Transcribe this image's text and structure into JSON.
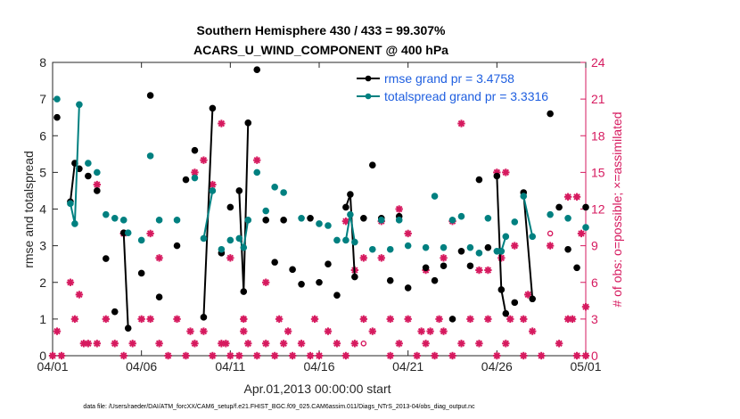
{
  "chart_data": {
    "type": "line",
    "title_line1": "Southern Hemisphere 430 / 433 = 99.307%",
    "title_line2": "ACARS_U_WIND_COMPONENT @ 400 hPa",
    "xlabel": "Apr.01,2013 00:00:00 start",
    "ylabel_left": "rmse and totalspread",
    "ylabel_right": "# of obs: o=possible; ×=assimilated",
    "xlim": [
      0,
      30
    ],
    "ylim_left": [
      0,
      8
    ],
    "ylim_right": [
      0,
      24
    ],
    "x_ticks": [
      0,
      5,
      10,
      15,
      20,
      25,
      30
    ],
    "x_tick_labels": [
      "04/01",
      "04/06",
      "04/11",
      "04/16",
      "04/21",
      "04/26",
      "05/01"
    ],
    "y_ticks_left": [
      "0",
      "1",
      "2",
      "3",
      "4",
      "5",
      "6",
      "7",
      "8"
    ],
    "y_ticks_right": [
      "0",
      "3",
      "6",
      "9",
      "12",
      "15",
      "18",
      "21",
      "24"
    ],
    "legend": [
      "rmse grand pr = 3.4758",
      "totalspread grand pr = 3.3316"
    ],
    "footnote": "data file: /Users/raeder/DAI/ATM_forcXX/CAM6_setup/f.e21.FHIST_BGC.f09_025.CAM6assim.011/Diags_NTrS_2013-04/obs_diag_output.nc",
    "colors": {
      "rmse": "#000000",
      "spread": "#008080",
      "obs": "#d61a5f"
    },
    "series": [
      {
        "name": "rmse",
        "points": [
          [
            0.25,
            6.5
          ],
          [
            1.0,
            4.2
          ],
          [
            1.25,
            5.25
          ],
          [
            1.5,
            5.1
          ],
          [
            2.0,
            4.9
          ],
          [
            2.5,
            4.5
          ],
          [
            3.0,
            2.65
          ],
          [
            3.5,
            1.2
          ],
          [
            4.0,
            3.35
          ],
          [
            4.25,
            0.75
          ],
          [
            5.0,
            2.25
          ],
          [
            5.5,
            7.1
          ],
          [
            6.0,
            1.6
          ],
          [
            7.0,
            3.0
          ],
          [
            7.5,
            4.8
          ],
          [
            8.0,
            5.6
          ],
          [
            8.5,
            1.05
          ],
          [
            9.0,
            6.75
          ],
          [
            9.5,
            2.8
          ],
          [
            10.0,
            4.05
          ],
          [
            10.5,
            4.5
          ],
          [
            10.75,
            1.75
          ],
          [
            11.0,
            6.35
          ],
          [
            11.5,
            7.8
          ],
          [
            12.0,
            3.7
          ],
          [
            12.5,
            2.55
          ],
          [
            13.0,
            3.7
          ],
          [
            13.5,
            2.35
          ],
          [
            14.0,
            1.95
          ],
          [
            14.5,
            3.75
          ],
          [
            15.0,
            2.0
          ],
          [
            15.5,
            2.5
          ],
          [
            16.0,
            1.65
          ],
          [
            16.5,
            4.05
          ],
          [
            16.75,
            4.4
          ],
          [
            17.0,
            2.15
          ],
          [
            17.5,
            3.75
          ],
          [
            18.0,
            5.2
          ],
          [
            18.5,
            3.75
          ],
          [
            19.0,
            2.05
          ],
          [
            19.5,
            3.8
          ],
          [
            20.0,
            1.85
          ],
          [
            21.0,
            2.4
          ],
          [
            21.5,
            2.05
          ],
          [
            22.0,
            2.45
          ],
          [
            22.5,
            1.0
          ],
          [
            23.0,
            2.85
          ],
          [
            23.5,
            2.45
          ],
          [
            24.0,
            4.8
          ],
          [
            24.5,
            2.95
          ],
          [
            25.0,
            4.9
          ],
          [
            25.25,
            1.8
          ],
          [
            25.5,
            1.15
          ],
          [
            26.0,
            1.45
          ],
          [
            26.5,
            4.45
          ],
          [
            27.0,
            1.55
          ],
          [
            28.0,
            6.6
          ],
          [
            28.5,
            4.05
          ],
          [
            29.0,
            2.9
          ],
          [
            29.5,
            2.4
          ],
          [
            30.0,
            4.05
          ]
        ]
      },
      {
        "name": "totalspread",
        "points": [
          [
            0.25,
            7.0
          ],
          [
            1.0,
            4.15
          ],
          [
            1.25,
            3.6
          ],
          [
            1.5,
            6.85
          ],
          [
            2.0,
            5.25
          ],
          [
            2.5,
            5.0
          ],
          [
            3.0,
            3.85
          ],
          [
            3.5,
            3.75
          ],
          [
            4.0,
            3.7
          ],
          [
            4.25,
            3.35
          ],
          [
            5.0,
            3.15
          ],
          [
            5.5,
            5.45
          ],
          [
            6.0,
            3.7
          ],
          [
            7.0,
            3.7
          ],
          [
            8.0,
            4.85
          ],
          [
            8.5,
            3.2
          ],
          [
            9.0,
            4.5
          ],
          [
            9.5,
            2.9
          ],
          [
            10.0,
            3.15
          ],
          [
            10.5,
            3.2
          ],
          [
            10.75,
            2.95
          ],
          [
            11.0,
            3.7
          ],
          [
            11.5,
            5.0
          ],
          [
            12.0,
            3.95
          ],
          [
            12.5,
            4.6
          ],
          [
            13.0,
            4.45
          ],
          [
            14.0,
            3.75
          ],
          [
            15.0,
            3.6
          ],
          [
            15.5,
            3.55
          ],
          [
            16.0,
            3.15
          ],
          [
            16.5,
            3.15
          ],
          [
            16.75,
            3.85
          ],
          [
            17.0,
            3.1
          ],
          [
            18.0,
            2.9
          ],
          [
            18.5,
            3.7
          ],
          [
            19.0,
            2.9
          ],
          [
            19.5,
            3.7
          ],
          [
            20.0,
            3.0
          ],
          [
            21.0,
            2.95
          ],
          [
            21.5,
            4.35
          ],
          [
            22.0,
            2.95
          ],
          [
            22.5,
            3.7
          ],
          [
            23.0,
            3.8
          ],
          [
            23.5,
            2.95
          ],
          [
            24.0,
            2.8
          ],
          [
            24.5,
            3.75
          ],
          [
            25.0,
            2.85
          ],
          [
            25.25,
            2.85
          ],
          [
            25.5,
            3.25
          ],
          [
            26.0,
            3.65
          ],
          [
            26.5,
            4.35
          ],
          [
            27.0,
            3.25
          ],
          [
            28.0,
            3.85
          ],
          [
            29.0,
            3.75
          ],
          [
            30.0,
            3.5
          ]
        ]
      }
    ],
    "line_segments": {
      "rmse": [
        [
          1.0,
          1.25
        ],
        [
          4.0,
          4.25
        ],
        [
          8.5,
          9.0
        ],
        [
          10.5,
          10.75,
          11.0
        ],
        [
          16.5,
          16.75,
          17.0
        ],
        [
          25.0,
          25.25,
          25.5
        ],
        [
          26.5,
          27.0
        ]
      ],
      "totalspread": [
        [
          1.0,
          1.25,
          1.5
        ],
        [
          8.5,
          9.0
        ],
        [
          10.5,
          10.75,
          11.0
        ],
        [
          16.5,
          16.75,
          17.0
        ],
        [
          25.0,
          25.25,
          25.5
        ],
        [
          26.5,
          27.0
        ]
      ]
    },
    "obs_assimilated": [
      [
        0.0,
        0
      ],
      [
        0.25,
        2
      ],
      [
        0.5,
        0
      ],
      [
        1.0,
        6
      ],
      [
        1.25,
        3
      ],
      [
        1.5,
        5
      ],
      [
        1.75,
        1
      ],
      [
        2.0,
        1
      ],
      [
        2.5,
        14
      ],
      [
        2.5,
        1
      ],
      [
        3.0,
        3
      ],
      [
        3.5,
        1
      ],
      [
        4.0,
        10
      ],
      [
        4.0,
        0
      ],
      [
        4.5,
        1
      ],
      [
        5.0,
        3
      ],
      [
        5.5,
        10
      ],
      [
        5.5,
        3
      ],
      [
        6.0,
        8
      ],
      [
        6.0,
        1
      ],
      [
        6.5,
        0
      ],
      [
        7.0,
        3
      ],
      [
        7.5,
        0
      ],
      [
        7.75,
        2
      ],
      [
        8.0,
        15
      ],
      [
        8.0,
        1
      ],
      [
        8.5,
        2
      ],
      [
        8.5,
        16
      ],
      [
        9.0,
        14
      ],
      [
        9.0,
        0
      ],
      [
        9.5,
        19
      ],
      [
        9.5,
        1
      ],
      [
        9.75,
        1
      ],
      [
        10.0,
        0
      ],
      [
        10.0,
        8
      ],
      [
        10.5,
        0
      ],
      [
        10.75,
        2
      ],
      [
        10.75,
        3
      ],
      [
        11.0,
        1
      ],
      [
        11.5,
        16
      ],
      [
        11.5,
        0
      ],
      [
        12.0,
        6
      ],
      [
        12.0,
        1
      ],
      [
        12.5,
        0
      ],
      [
        12.75,
        3
      ],
      [
        13.0,
        1
      ],
      [
        13.25,
        2
      ],
      [
        13.5,
        0
      ],
      [
        14.0,
        1
      ],
      [
        14.5,
        0
      ],
      [
        14.75,
        3
      ],
      [
        15.0,
        0
      ],
      [
        15.5,
        2
      ],
      [
        16.0,
        1
      ],
      [
        16.5,
        0
      ],
      [
        16.5,
        11
      ],
      [
        17.0,
        7
      ],
      [
        17.0,
        1
      ],
      [
        17.5,
        3
      ],
      [
        17.5,
        8
      ],
      [
        18.0,
        2
      ],
      [
        18.5,
        11
      ],
      [
        18.5,
        8
      ],
      [
        19.0,
        0
      ],
      [
        19.0,
        3
      ],
      [
        19.5,
        12
      ],
      [
        19.5,
        1
      ],
      [
        20.0,
        10
      ],
      [
        20.0,
        3
      ],
      [
        20.5,
        0
      ],
      [
        20.75,
        2
      ],
      [
        21.0,
        7
      ],
      [
        21.0,
        1
      ],
      [
        21.25,
        2
      ],
      [
        21.5,
        0
      ],
      [
        21.75,
        3
      ],
      [
        22.0,
        8
      ],
      [
        22.0,
        2
      ],
      [
        22.5,
        0
      ],
      [
        22.5,
        11
      ],
      [
        23.0,
        19
      ],
      [
        23.0,
        1
      ],
      [
        23.5,
        3
      ],
      [
        24.0,
        7
      ],
      [
        24.0,
        1
      ],
      [
        24.5,
        7
      ],
      [
        24.5,
        3
      ],
      [
        25.0,
        15
      ],
      [
        25.0,
        0
      ],
      [
        25.25,
        8
      ],
      [
        25.5,
        15
      ],
      [
        25.5,
        1
      ],
      [
        25.75,
        3
      ],
      [
        26.0,
        9
      ],
      [
        26.5,
        3
      ],
      [
        26.5,
        0
      ],
      [
        26.75,
        5
      ],
      [
        27.0,
        2
      ],
      [
        27.5,
        0
      ],
      [
        28.0,
        9
      ],
      [
        28.5,
        1
      ],
      [
        29.0,
        13
      ],
      [
        29.0,
        3
      ],
      [
        29.25,
        3
      ],
      [
        29.5,
        13
      ],
      [
        29.5,
        0
      ],
      [
        29.75,
        10
      ],
      [
        30.0,
        4
      ],
      [
        30.0,
        0
      ]
    ],
    "obs_possible": [
      [
        10.75,
        3
      ],
      [
        17.5,
        1
      ],
      [
        28.0,
        10
      ]
    ]
  }
}
